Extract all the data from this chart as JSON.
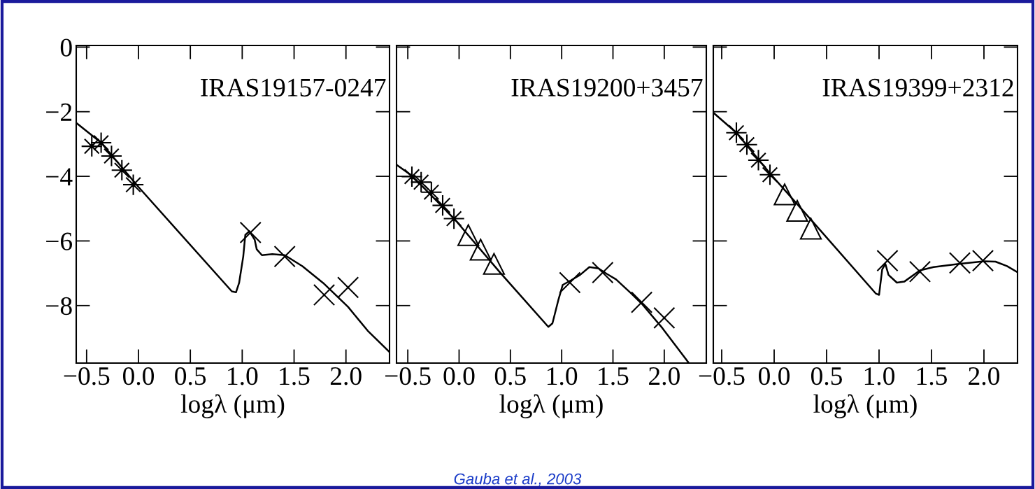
{
  "chart_data": [
    {
      "type": "scatter",
      "xlabel": "logλ (μm)",
      "xlim": [
        -0.6,
        2.42
      ],
      "xticks": [
        -0.5,
        {
          "value": 0,
          "label": "0.0"
        },
        0.5,
        {
          "value": 1,
          "label": "1.0"
        },
        1.5,
        {
          "value": 2,
          "label": "2.0"
        }
      ],
      "ylim": [
        -9.78,
        0.05
      ],
      "yticks": [
        0,
        -2,
        -4,
        -6,
        -8
      ],
      "annotations": [
        "IRAS19157-0247"
      ],
      "series": [
        {
          "type": "line",
          "color": "#000000",
          "marker": "none",
          "x": [
            -0.59,
            -0.36,
            0.0,
            0.9,
            0.94,
            0.97,
            1.01,
            1.03,
            1.07,
            1.12,
            1.14,
            1.19,
            1.29,
            1.41,
            1.58,
            1.78,
            2.02,
            2.21,
            2.42
          ],
          "values": [
            -2.37,
            -2.96,
            -4.33,
            -7.56,
            -7.59,
            -7.3,
            -6.48,
            -5.81,
            -5.7,
            -5.96,
            -6.26,
            -6.44,
            -6.41,
            -6.44,
            -6.78,
            -7.3,
            -8.04,
            -8.78,
            -9.44
          ]
        },
        {
          "color": "#000000",
          "marker": "star",
          "x": [
            -0.45,
            -0.36,
            -0.26,
            -0.16,
            -0.05
          ],
          "values": [
            -3.07,
            -2.96,
            -3.37,
            -3.81,
            -4.26
          ]
        },
        {
          "color": "#000000",
          "marker": "cross",
          "x": [
            1.08,
            1.41,
            1.79,
            2.02
          ],
          "values": [
            -5.74,
            -6.48,
            -7.67,
            -7.44
          ]
        }
      ]
    },
    {
      "type": "scatter",
      "xlabel": "logλ (μm)",
      "xlim": [
        -0.61,
        2.41
      ],
      "xticks": [
        -0.5,
        {
          "value": 0,
          "label": "0.0"
        },
        0.5,
        {
          "value": 1,
          "label": "1.0"
        },
        1.5,
        {
          "value": 2,
          "label": "2.0"
        }
      ],
      "ylim": [
        -9.78,
        0.05
      ],
      "yticks": [
        {
          "value": 0,
          "label": null
        },
        {
          "value": -2,
          "label": null
        },
        {
          "value": -4,
          "label": null
        },
        {
          "value": -6,
          "label": null
        },
        {
          "value": -8,
          "label": null
        }
      ],
      "tick_labels": "x",
      "annotations": [
        "IRAS19200+3457",
        "Gauba et al., 2003"
      ],
      "series": [
        {
          "type": "line",
          "color": "#000000",
          "marker": "none",
          "x": [
            -0.61,
            -0.46,
            -0.04,
            0.4,
            0.87,
            0.91,
            0.97,
            1.01,
            1.09,
            1.18,
            1.27,
            1.36,
            1.44,
            1.53,
            1.67,
            1.78,
            1.98,
            2.24
          ],
          "values": [
            -3.64,
            -3.98,
            -5.34,
            -6.98,
            -8.66,
            -8.55,
            -7.8,
            -7.36,
            -7.22,
            -7.05,
            -6.81,
            -6.85,
            -7.02,
            -7.19,
            -7.6,
            -7.94,
            -8.69,
            -9.78
          ]
        },
        {
          "color": "#000000",
          "marker": "star",
          "x": [
            -0.46,
            -0.37,
            -0.27,
            -0.16,
            -0.05
          ],
          "values": [
            -4.01,
            -4.18,
            -4.49,
            -4.9,
            -5.31
          ]
        },
        {
          "color": "#000000",
          "marker": "triangle",
          "x": [
            0.09,
            0.21,
            0.34
          ],
          "values": [
            -5.82,
            -6.27,
            -6.71
          ]
        },
        {
          "color": "#000000",
          "marker": "cross",
          "x": [
            1.08,
            1.4,
            1.78,
            2.0
          ],
          "values": [
            -7.29,
            -6.98,
            -7.9,
            -8.38
          ]
        }
      ]
    },
    {
      "type": "scatter",
      "xlabel": "logλ (μm)",
      "xlim": [
        -0.58,
        2.32
      ],
      "xticks": [
        -0.5,
        {
          "value": 0,
          "label": "0.0"
        },
        0.5,
        {
          "value": 1,
          "label": "1.0"
        },
        1.5,
        {
          "value": 2,
          "label": "2.0"
        }
      ],
      "ylim": [
        -9.78,
        0.05
      ],
      "yticks": [
        {
          "value": 0,
          "label": null
        },
        {
          "value": -2,
          "label": null
        },
        {
          "value": -4,
          "label": null
        },
        {
          "value": -6,
          "label": null
        },
        {
          "value": -8,
          "label": null
        }
      ],
      "tick_labels": "x",
      "annotations": [
        "IRAS19399+2312"
      ],
      "series": [
        {
          "type": "line",
          "color": "#000000",
          "marker": "none",
          "x": [
            -0.58,
            -0.36,
            -0.04,
            0.35,
            0.97,
            1.0,
            1.03,
            1.06,
            1.09,
            1.17,
            1.24,
            1.39,
            1.52,
            1.76,
            2.0,
            2.11,
            2.22,
            2.31
          ],
          "values": [
            -2.03,
            -2.65,
            -3.91,
            -5.34,
            -7.63,
            -7.67,
            -6.88,
            -6.71,
            -7.05,
            -7.29,
            -7.26,
            -6.91,
            -6.81,
            -6.71,
            -6.63,
            -6.64,
            -6.78,
            -6.95
          ]
        },
        {
          "color": "#000000",
          "marker": "star",
          "x": [
            -0.36,
            -0.26,
            -0.15,
            -0.04
          ],
          "values": [
            -2.65,
            -3.02,
            -3.5,
            -3.95
          ]
        },
        {
          "color": "#000000",
          "marker": "triangle",
          "x": [
            0.1,
            0.22,
            0.35
          ],
          "values": [
            -4.56,
            -5.07,
            -5.62
          ]
        },
        {
          "color": "#000000",
          "marker": "cross",
          "x": [
            1.08,
            1.39,
            1.77,
            1.99
          ],
          "values": [
            -6.61,
            -6.95,
            -6.68,
            -6.61
          ]
        }
      ]
    }
  ]
}
